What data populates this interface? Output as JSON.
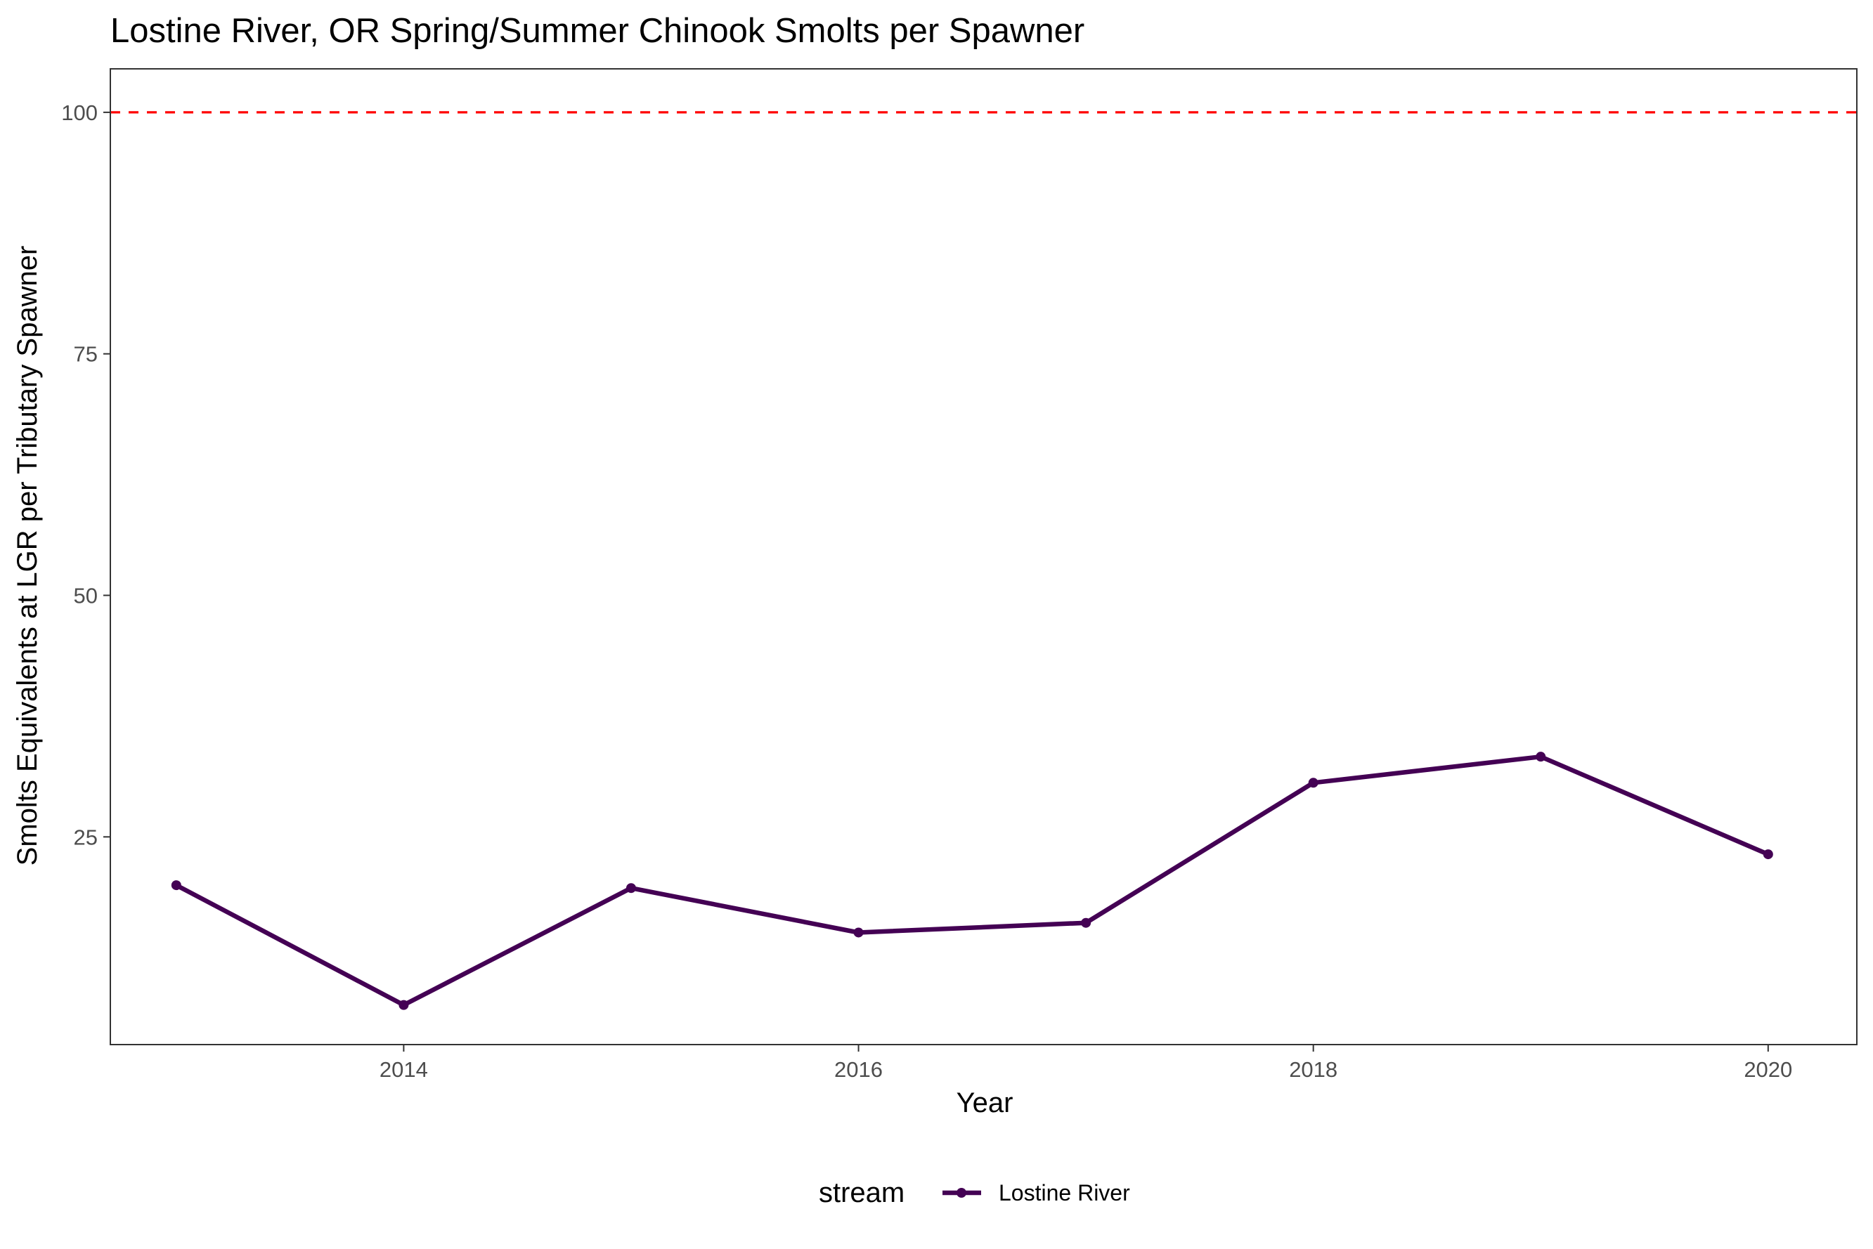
{
  "chart_data": {
    "type": "line",
    "title": "Lostine River, OR Spring/Summer Chinook Smolts per Spawner",
    "xlabel": "Year",
    "ylabel": "Smolts Equivalents at LGR per Tributary Spawner",
    "xlim": [
      2012.71,
      2020.39
    ],
    "ylim": [
      3.5,
      104.5
    ],
    "x_ticks": [
      2014,
      2016,
      2018,
      2020
    ],
    "y_ticks": [
      25,
      50,
      75,
      100
    ],
    "grid": false,
    "reference_line": {
      "y": 100,
      "style": "dashed",
      "color": "#ff0000"
    },
    "legend": {
      "title": "stream",
      "position": "bottom"
    },
    "series": [
      {
        "name": "Lostine River",
        "color": "#440154",
        "x": [
          2013,
          2014,
          2015,
          2016,
          2017,
          2018,
          2019,
          2020
        ],
        "y": [
          20.0,
          7.6,
          19.7,
          15.1,
          16.1,
          30.6,
          33.3,
          23.2
        ]
      }
    ]
  }
}
